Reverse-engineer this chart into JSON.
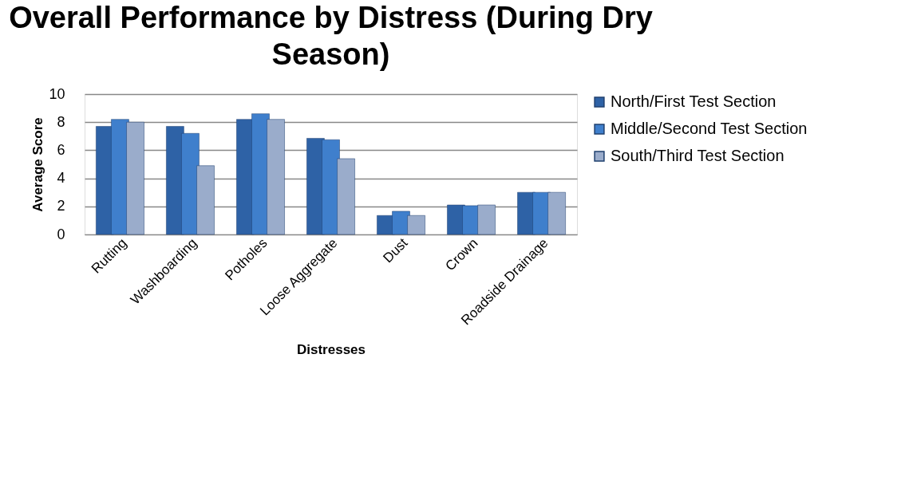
{
  "chart_data": {
    "type": "bar",
    "title": "Overall Performance by Distress  (During Dry Season)",
    "xlabel": "Distresses",
    "ylabel": "Average Score",
    "categories": [
      "Rutting",
      "Washboarding",
      "Potholes",
      "Loose Aggregate",
      "Dust",
      "Crown",
      "Roadside Drainage"
    ],
    "series": [
      {
        "name": "North/First Test Section",
        "color": "#2e62a6",
        "values": [
          7.7,
          7.7,
          8.2,
          6.85,
          1.35,
          2.1,
          3.0
        ]
      },
      {
        "name": "Middle/Second Test Section",
        "color": "#3f7fcc",
        "values": [
          8.2,
          7.2,
          8.6,
          6.75,
          1.65,
          2.05,
          3.0
        ]
      },
      {
        "name": "South/Third Test Section",
        "color": "#9aaccb",
        "values": [
          8.0,
          4.9,
          8.2,
          5.4,
          1.35,
          2.1,
          3.0
        ]
      }
    ],
    "ylim": [
      0,
      10
    ],
    "yticks": [
      0,
      2,
      4,
      6,
      8,
      10
    ],
    "grid": "y",
    "legend": "right"
  }
}
